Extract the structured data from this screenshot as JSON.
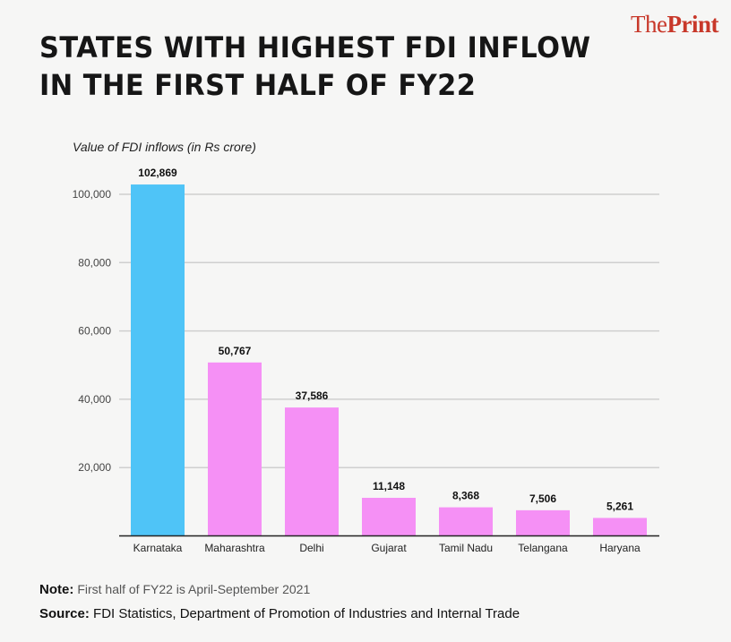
{
  "logo": {
    "the": "The",
    "print": "Print"
  },
  "title_line1": "STATES WITH HIGHEST FDI INFLOW",
  "title_line2": "IN THE FIRST HALF OF FY22",
  "chart_data": {
    "type": "bar",
    "ylabel": "Value of FDI inflows (in Rs crore)",
    "categories": [
      "Karnataka",
      "Maharashtra",
      "Delhi",
      "Gujarat",
      "Tamil Nadu",
      "Telangana",
      "Haryana"
    ],
    "values": [
      102869,
      50767,
      37586,
      11148,
      8368,
      7506,
      5261
    ],
    "data_labels": [
      "102,869",
      "50,767",
      "37,586",
      "11,148",
      "8,368",
      "7,506",
      "5,261"
    ],
    "yticks": [
      20000,
      40000,
      60000,
      80000,
      100000
    ],
    "ytick_labels": [
      "20,000",
      "40,000",
      "60,000",
      "80,000",
      "100,000"
    ],
    "ylim": [
      0,
      100000
    ],
    "grid": true,
    "colors": {
      "highlight": "#4fc4f7",
      "default": "#f590f5"
    }
  },
  "note": {
    "label": "Note:",
    "text": "First half of FY22 is April-September 2021"
  },
  "source": {
    "label": "Source:",
    "text": "FDI Statistics, Department of Promotion of Industries and Internal Trade"
  }
}
